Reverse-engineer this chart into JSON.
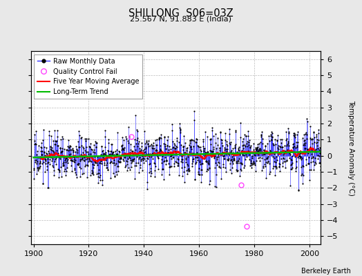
{
  "title": "SHILLONG  S06=03Z",
  "subtitle": "25.567 N, 91.883 E (India)",
  "ylabel": "Temperature Anomaly (°C)",
  "credit": "Berkeley Earth",
  "year_start": 1900,
  "year_end": 2005,
  "ylim": [
    -5.5,
    6.5
  ],
  "yticks": [
    -5,
    -4,
    -3,
    -2,
    -1,
    0,
    1,
    2,
    3,
    4,
    5,
    6
  ],
  "xticks": [
    1900,
    1920,
    1940,
    1960,
    1980,
    2000
  ],
  "xlim": [
    1899,
    2004
  ],
  "raw_color": "#3333ff",
  "ma_color": "#ff0000",
  "trend_color": "#00bb00",
  "qc_color": "#ff44ff",
  "background": "#e8e8e8",
  "plot_background": "#ffffff",
  "grid_color": "#bbbbbb",
  "seed": 17
}
